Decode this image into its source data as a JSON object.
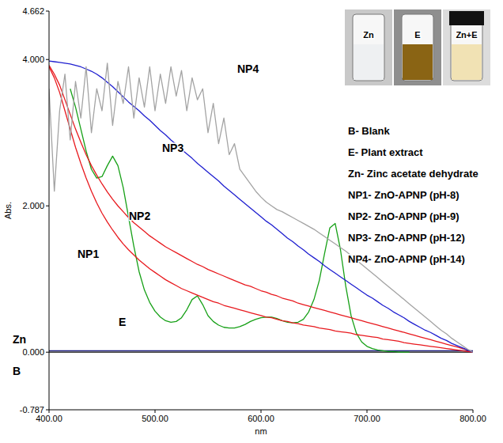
{
  "chart_data": {
    "type": "line",
    "x_label": "nm",
    "y_label": "Abs.",
    "x": [
      400,
      405,
      410,
      415,
      420,
      425,
      430,
      435,
      440,
      445,
      450,
      455,
      460,
      465,
      470,
      475,
      480,
      485,
      490,
      495,
      500,
      505,
      510,
      515,
      520,
      525,
      530,
      535,
      540,
      545,
      550,
      555,
      560,
      565,
      570,
      575,
      580,
      585,
      590,
      595,
      600,
      605,
      610,
      615,
      620,
      625,
      630,
      635,
      640,
      645,
      650,
      655,
      660,
      665,
      670,
      675,
      680,
      685,
      690,
      695,
      700,
      705,
      710,
      715,
      720,
      725,
      730,
      735,
      740,
      745,
      750,
      755,
      760,
      765,
      770,
      775,
      780,
      785,
      790,
      795,
      800
    ],
    "series": [
      {
        "name": "B",
        "color": "#000000",
        "values": [
          0,
          0,
          0,
          0,
          0,
          0,
          0,
          0,
          0,
          0,
          0,
          0,
          0,
          0,
          0,
          0,
          0,
          0,
          0,
          0,
          0,
          0,
          0,
          0,
          0,
          0,
          0,
          0,
          0,
          0,
          0,
          0,
          0,
          0,
          0,
          0,
          0,
          0,
          0,
          0,
          0,
          0,
          0,
          0,
          0,
          0,
          0,
          0,
          0,
          0,
          0,
          0,
          0,
          0,
          0,
          0,
          0,
          0,
          0,
          0,
          0,
          0,
          0,
          0,
          0,
          0,
          0,
          0,
          0,
          0,
          0,
          0,
          0,
          0,
          0,
          0,
          0,
          0,
          0,
          0,
          0
        ]
      },
      {
        "name": "Zn",
        "color": "#1a1a80",
        "values": [
          0.02,
          0.02,
          0.02,
          0.02,
          0.02,
          0.02,
          0.02,
          0.02,
          0.02,
          0.02,
          0.02,
          0.02,
          0.02,
          0.02,
          0.02,
          0.02,
          0.02,
          0.02,
          0.02,
          0.02,
          0.02,
          0.02,
          0.02,
          0.02,
          0.02,
          0.02,
          0.02,
          0.02,
          0.02,
          0.02,
          0.02,
          0.02,
          0.02,
          0.02,
          0.02,
          0.02,
          0.02,
          0.02,
          0.02,
          0.02,
          0.02,
          0.02,
          0.02,
          0.02,
          0.02,
          0.02,
          0.02,
          0.02,
          0.02,
          0.02,
          0.02,
          0.02,
          0.02,
          0.02,
          0.02,
          0.02,
          0.02,
          0.02,
          0.02,
          0.02,
          0.02,
          0.02,
          0.02,
          0.02,
          0.02,
          0.02,
          0.02,
          0.02,
          0.02,
          0.02,
          0.02,
          0.02,
          0.02,
          0.02,
          0.02,
          0.02,
          0.02,
          0.02,
          0.02,
          0.02,
          0.02
        ]
      },
      {
        "name": "E",
        "color": "#16a016",
        "values": [
          null,
          null,
          null,
          null,
          3.6,
          3.35,
          3.05,
          2.75,
          2.5,
          2.38,
          2.4,
          2.55,
          2.68,
          2.55,
          2.25,
          1.85,
          1.45,
          1.1,
          0.85,
          0.68,
          0.56,
          0.48,
          0.43,
          0.41,
          0.42,
          0.47,
          0.58,
          0.72,
          0.77,
          0.65,
          0.5,
          0.42,
          0.37,
          0.34,
          0.33,
          0.33,
          0.35,
          0.38,
          0.42,
          0.45,
          0.47,
          0.48,
          0.48,
          0.46,
          0.43,
          0.41,
          0.4,
          0.41,
          0.45,
          0.55,
          0.72,
          0.98,
          1.35,
          1.7,
          1.76,
          1.4,
          0.9,
          0.5,
          0.26,
          0.14,
          0.08,
          0.05,
          0.03,
          0.02,
          0.01,
          0.01,
          0.0,
          0.0,
          0.0,
          null,
          null,
          null,
          null,
          null,
          null,
          null,
          null,
          null,
          null,
          null,
          null
        ]
      },
      {
        "name": "NP1",
        "color": "#e8191e",
        "values": [
          3.9,
          3.75,
          3.55,
          3.3,
          3.05,
          2.8,
          2.58,
          2.38,
          2.2,
          2.04,
          1.9,
          1.78,
          1.67,
          1.57,
          1.48,
          1.4,
          1.33,
          1.26,
          1.2,
          1.14,
          1.09,
          1.04,
          0.99,
          0.95,
          0.91,
          0.87,
          0.84,
          0.81,
          0.78,
          0.75,
          0.72,
          0.69,
          0.67,
          0.64,
          0.62,
          0.6,
          0.58,
          0.56,
          0.54,
          0.52,
          0.5,
          0.48,
          0.47,
          0.45,
          0.43,
          0.42,
          0.4,
          0.39,
          0.37,
          0.36,
          0.35,
          0.33,
          0.32,
          0.31,
          0.29,
          0.28,
          0.27,
          0.26,
          0.24,
          0.23,
          0.22,
          0.21,
          0.2,
          0.18,
          0.17,
          0.16,
          0.15,
          0.13,
          0.12,
          0.11,
          0.1,
          0.09,
          0.08,
          0.07,
          0.06,
          0.05,
          0.04,
          0.03,
          0.02,
          0.01,
          0.0
        ]
      },
      {
        "name": "NP2",
        "color": "#e8191e",
        "values": [
          3.92,
          3.8,
          3.65,
          3.45,
          3.25,
          3.05,
          2.87,
          2.7,
          2.55,
          2.42,
          2.3,
          2.19,
          2.09,
          2.0,
          1.92,
          1.84,
          1.77,
          1.71,
          1.65,
          1.59,
          1.54,
          1.49,
          1.44,
          1.4,
          1.36,
          1.32,
          1.28,
          1.24,
          1.2,
          1.17,
          1.13,
          1.1,
          1.07,
          1.04,
          1.01,
          0.98,
          0.95,
          0.92,
          0.9,
          0.87,
          0.84,
          0.82,
          0.79,
          0.77,
          0.74,
          0.72,
          0.7,
          0.67,
          0.65,
          0.63,
          0.61,
          0.59,
          0.57,
          0.55,
          0.53,
          0.51,
          0.49,
          0.47,
          0.45,
          0.43,
          0.41,
          0.39,
          0.37,
          0.35,
          0.33,
          0.31,
          0.29,
          0.27,
          0.25,
          0.23,
          0.21,
          0.19,
          0.17,
          0.15,
          0.13,
          0.11,
          0.09,
          0.07,
          0.05,
          0.03,
          0.0
        ]
      },
      {
        "name": "NP3",
        "color": "#1f1fd0",
        "values": [
          3.98,
          3.97,
          3.96,
          3.95,
          3.94,
          3.92,
          3.9,
          3.87,
          3.84,
          3.8,
          3.75,
          3.69,
          3.63,
          3.56,
          3.49,
          3.42,
          3.36,
          3.3,
          3.23,
          3.17,
          3.1,
          3.03,
          2.97,
          2.9,
          2.84,
          2.77,
          2.71,
          2.65,
          2.58,
          2.52,
          2.46,
          2.4,
          2.34,
          2.27,
          2.21,
          2.15,
          2.09,
          2.03,
          1.97,
          1.91,
          1.85,
          1.79,
          1.74,
          1.68,
          1.62,
          1.56,
          1.51,
          1.45,
          1.4,
          1.34,
          1.29,
          1.24,
          1.18,
          1.13,
          1.08,
          1.03,
          0.98,
          0.93,
          0.88,
          0.83,
          0.78,
          0.74,
          0.69,
          0.64,
          0.6,
          0.55,
          0.51,
          0.47,
          0.42,
          0.38,
          0.34,
          0.3,
          0.27,
          0.23,
          0.19,
          0.16,
          0.12,
          0.09,
          0.06,
          0.03,
          0.0
        ]
      },
      {
        "name": "NP4",
        "color": "#a3a3a3",
        "values": [
          3.6,
          2.2,
          3.3,
          3.8,
          2.9,
          3.7,
          3.2,
          3.9,
          3.0,
          3.6,
          3.3,
          3.95,
          3.1,
          3.7,
          3.4,
          3.9,
          3.2,
          3.75,
          3.35,
          3.9,
          3.3,
          3.8,
          3.4,
          3.9,
          3.5,
          3.85,
          3.3,
          3.75,
          3.45,
          3.6,
          3.0,
          3.4,
          2.85,
          3.2,
          2.7,
          2.85,
          2.5,
          2.4,
          2.3,
          2.2,
          2.12,
          2.05,
          2.0,
          1.95,
          1.92,
          1.88,
          1.84,
          1.8,
          1.76,
          1.72,
          1.68,
          1.63,
          1.58,
          1.53,
          1.48,
          1.43,
          1.38,
          1.32,
          1.26,
          1.2,
          1.14,
          1.08,
          1.02,
          0.96,
          0.9,
          0.84,
          0.78,
          0.72,
          0.66,
          0.6,
          0.54,
          0.48,
          0.42,
          0.36,
          0.3,
          0.25,
          0.19,
          0.14,
          0.09,
          0.04,
          0.0
        ]
      }
    ],
    "xlim": [
      400,
      800
    ],
    "xticks": [
      {
        "value": 400,
        "label": "400.00"
      },
      {
        "value": 500,
        "label": "500.00"
      },
      {
        "value": 600,
        "label": "600.00"
      },
      {
        "value": 700,
        "label": "700.00"
      },
      {
        "value": 800,
        "label": "800.00"
      }
    ],
    "ylim": [
      -0.787,
      4.662
    ],
    "yticks": [
      -0.787,
      {
        "value": 0,
        "label": "0.000"
      },
      {
        "value": 2,
        "label": "2.000"
      },
      {
        "value": 4,
        "label": "4.000"
      },
      4.662
    ],
    "grid": false,
    "annotations": [
      "B- Blank",
      "E- Plant extract",
      "Zn- Zinc acetate dehydrate",
      "NP1- ZnO-APNP (pH-8)",
      "NP2- ZnO-APNP (pH-9)",
      "NP3- ZnO-APNP (pH-12)",
      "NP4- ZnO-APNP (pH-14)"
    ],
    "inset_labels": [
      "Zn",
      "E",
      "Zn+E"
    ]
  }
}
